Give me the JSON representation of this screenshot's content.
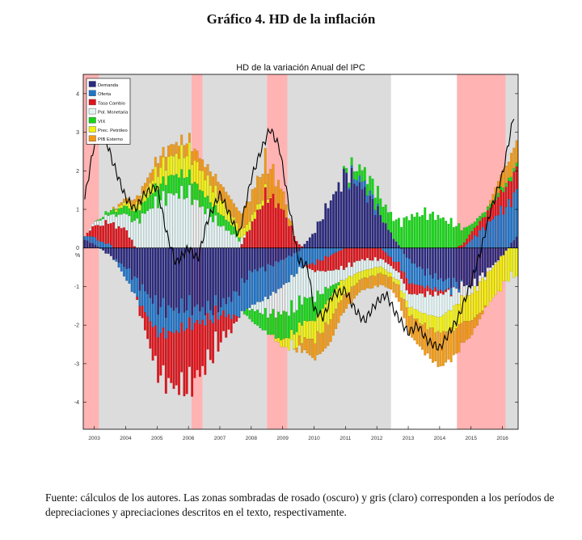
{
  "figure_title": "Gráfico 4. HD de la inflación",
  "source_note": "Fuente: cálculos de los autores. Las zonas sombradas de rosado (oscuro) y gris (claro) corresponden a los períodos de depreciaciones y apreciaciones descritos en el texto, respectivamente.",
  "colors": {
    "Demanda": "#2b2a80",
    "Oferta": "#1f74c8",
    "Tasa Cambio": "#e0141b",
    "Pol. Monetaria": "#e3f3f3",
    "VIX": "#14d614",
    "Prec. Petróleo": "#f2f20c",
    "PIB Externo": "#f39a12",
    "pink_shade": "#ffb3b3",
    "gray_shade": "#dcdcdc",
    "ipc_line": "#000000"
  },
  "chart_data": {
    "type": "bar",
    "stacked": true,
    "title": "HD de la variación Anual del IPC",
    "ylabel": "%",
    "xlabel": "",
    "ylim": [
      -4.7,
      4.5
    ],
    "xlim": [
      2002.65,
      2016.5
    ],
    "yticks": [
      -4,
      -3,
      -2,
      -1,
      0,
      1,
      2,
      3,
      4
    ],
    "year_ticks": [
      "2003",
      "2004",
      "2005",
      "2006",
      "2007",
      "2008",
      "2009",
      "2010",
      "2011",
      "2012",
      "2013",
      "2014",
      "2015",
      "2016"
    ],
    "legend_position": "top-left",
    "legend": [
      "Demanda",
      "Oferta",
      "Tasa Cambio",
      "Pol. Monetaria",
      "VIX",
      "Prec. Petróleo",
      "PIB Externo"
    ],
    "shaded_periods": {
      "pink": [
        [
          2002.65,
          2003.15
        ],
        [
          2006.1,
          2006.45
        ],
        [
          2008.5,
          2009.15
        ],
        [
          2014.55,
          2016.1
        ]
      ],
      "gray": [
        [
          2003.15,
          2006.1
        ],
        [
          2006.45,
          2008.5
        ],
        [
          2009.15,
          2012.45
        ],
        [
          2016.1,
          2016.5
        ]
      ]
    },
    "x_knots": [
      2002.7,
      2003.0,
      2003.5,
      2004.0,
      2004.5,
      2005.0,
      2005.5,
      2006.0,
      2006.5,
      2007.0,
      2007.5,
      2008.0,
      2008.5,
      2009.0,
      2009.5,
      2010.0,
      2010.5,
      2011.0,
      2011.5,
      2012.0,
      2012.5,
      2013.0,
      2013.5,
      2014.0,
      2014.5,
      2015.0,
      2015.5,
      2016.0,
      2016.45
    ],
    "series": [
      {
        "name": "Demanda",
        "values": [
          0.2,
          0.1,
          -0.2,
          -0.5,
          -1.0,
          -1.5,
          -1.6,
          -1.5,
          -1.6,
          -1.5,
          -1.2,
          -0.6,
          -0.5,
          -0.3,
          -0.1,
          0.4,
          1.2,
          1.9,
          1.6,
          1.0,
          0.3,
          -0.3,
          -0.6,
          -0.8,
          -0.9,
          -1.0,
          -0.6,
          -0.2,
          0.3
        ]
      },
      {
        "name": "Oferta",
        "values": [
          0.1,
          0.2,
          0.1,
          -0.3,
          -0.5,
          -0.7,
          -0.6,
          -0.5,
          -0.3,
          -0.2,
          -0.6,
          -0.9,
          -0.8,
          -0.7,
          -0.5,
          -0.4,
          -0.2,
          0.0,
          0.2,
          0.1,
          -0.3,
          -0.6,
          -0.4,
          -0.3,
          -0.2,
          0.2,
          0.6,
          1.0,
          1.2
        ]
      },
      {
        "name": "Tasa Cambio",
        "values": [
          0.0,
          0.3,
          0.6,
          0.5,
          -0.3,
          -1.0,
          -1.4,
          -1.6,
          -1.2,
          -0.7,
          -0.2,
          0.6,
          1.4,
          1.0,
          0.1,
          -0.2,
          -0.4,
          -0.5,
          -0.3,
          -0.3,
          -0.2,
          -0.3,
          -0.2,
          -0.1,
          0.0,
          0.2,
          0.3,
          0.5,
          0.6
        ]
      },
      {
        "name": "Pol. Monetaria",
        "values": [
          0.0,
          0.1,
          0.2,
          0.4,
          0.8,
          1.2,
          1.4,
          1.4,
          1.0,
          0.6,
          0.3,
          -0.1,
          -0.4,
          -0.7,
          -0.9,
          -0.7,
          -0.4,
          -0.3,
          -0.3,
          -0.2,
          -0.2,
          -0.3,
          -0.5,
          -0.6,
          -0.4,
          -0.2,
          -0.1,
          0.0,
          0.0
        ]
      },
      {
        "name": "VIX",
        "values": [
          0.0,
          0.0,
          0.1,
          0.2,
          0.3,
          0.4,
          0.5,
          0.5,
          0.4,
          0.3,
          0.2,
          -0.3,
          -0.5,
          -0.7,
          -0.6,
          -0.6,
          -0.3,
          0.1,
          0.3,
          0.4,
          0.5,
          0.8,
          0.9,
          0.8,
          0.6,
          0.2,
          0.1,
          0.1,
          0.1
        ]
      },
      {
        "name": "Prec. Petróleo",
        "values": [
          0.0,
          0.0,
          0.0,
          0.1,
          0.2,
          0.4,
          0.5,
          0.6,
          0.5,
          0.4,
          0.2,
          0.2,
          0.1,
          -0.2,
          -0.4,
          -0.5,
          -0.6,
          -0.4,
          -0.2,
          -0.2,
          -0.1,
          -0.2,
          -0.3,
          -0.4,
          -0.6,
          -0.7,
          -0.8,
          -0.8,
          -0.7
        ]
      },
      {
        "name": "PIB Externo",
        "values": [
          0.0,
          0.0,
          0.0,
          0.1,
          0.2,
          0.3,
          0.3,
          0.3,
          0.3,
          0.4,
          0.4,
          0.6,
          0.8,
          0.5,
          -0.2,
          -0.5,
          -0.6,
          -0.4,
          -0.3,
          -0.3,
          -0.3,
          -0.5,
          -0.7,
          -0.9,
          -0.7,
          -0.4,
          0.0,
          0.4,
          0.6
        ]
      }
    ],
    "ipc_line": {
      "x": [
        2002.7,
        2003.0,
        2003.3,
        2003.6,
        2004.0,
        2004.3,
        2004.6,
        2005.0,
        2005.3,
        2005.6,
        2006.0,
        2006.3,
        2006.6,
        2007.0,
        2007.3,
        2007.6,
        2008.0,
        2008.3,
        2008.6,
        2008.9,
        2009.2,
        2009.5,
        2009.8,
        2010.0,
        2010.3,
        2010.6,
        2011.0,
        2011.3,
        2011.6,
        2012.0,
        2012.3,
        2012.6,
        2013.0,
        2013.3,
        2013.6,
        2014.0,
        2014.3,
        2014.6,
        2015.0,
        2015.3,
        2015.6,
        2016.0,
        2016.4
      ],
      "y": [
        1.3,
        2.7,
        3.0,
        2.2,
        1.3,
        1.0,
        1.4,
        1.6,
        0.4,
        -0.4,
        0.0,
        -0.3,
        0.7,
        1.4,
        0.9,
        0.3,
        1.8,
        2.5,
        3.1,
        2.6,
        1.1,
        -0.3,
        -0.5,
        -1.6,
        -1.8,
        -1.2,
        -1.1,
        -1.6,
        -1.9,
        -1.4,
        -1.2,
        -1.7,
        -2.2,
        -2.0,
        -2.4,
        -2.6,
        -2.2,
        -1.8,
        -0.9,
        -0.1,
        0.9,
        1.9,
        3.6
      ]
    }
  }
}
